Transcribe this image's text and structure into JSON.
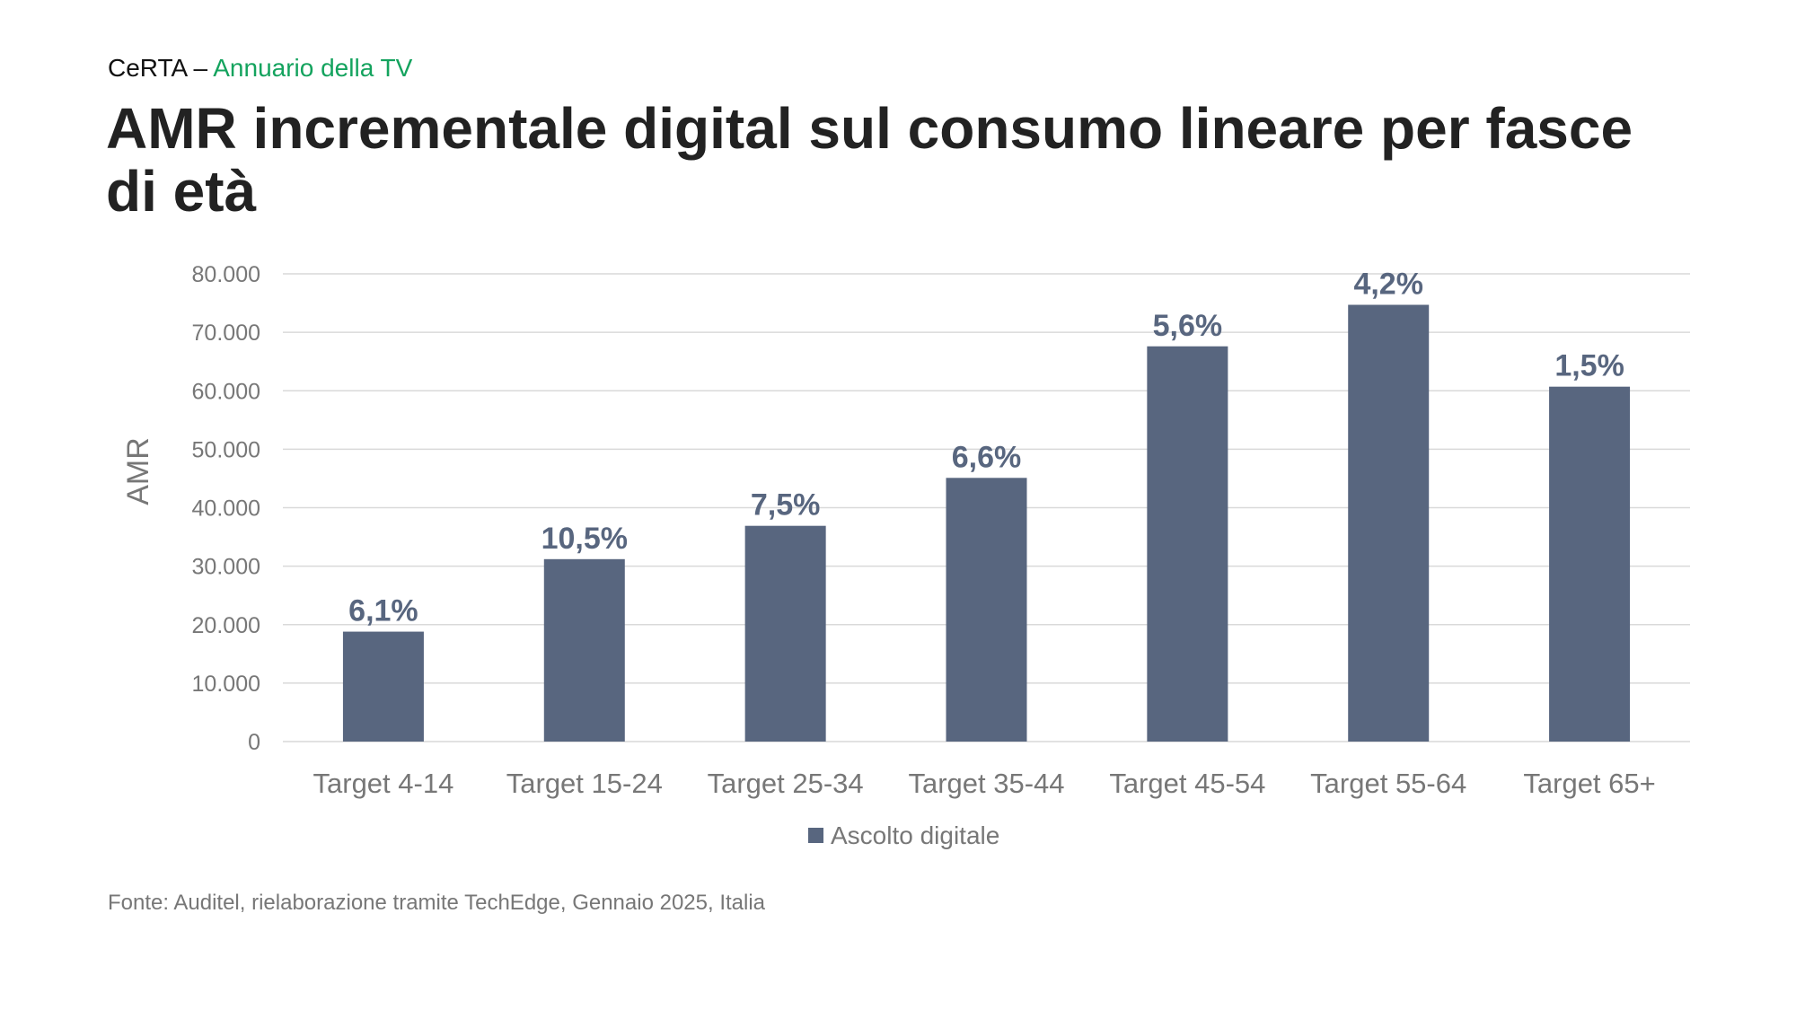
{
  "header": {
    "brand": "CeRTA –",
    "publication": "Annuario della TV",
    "title": "AMR incrementale digital sul consumo lineare per fasce di età"
  },
  "source": "Fonte: Auditel, rielaborazione tramite TechEdge, Gennaio 2025, Italia",
  "colors": {
    "bar": "#58667f",
    "accent": "#14a35e",
    "grid": "#d9d9d9",
    "tick": "#777777"
  },
  "chart_data": {
    "type": "bar",
    "title": "AMR incrementale digital sul consumo lineare per fasce di età",
    "xlabel": "",
    "ylabel": "AMR",
    "ylim": [
      0,
      80000
    ],
    "yticks": [
      0,
      10000,
      20000,
      30000,
      40000,
      50000,
      60000,
      70000,
      80000
    ],
    "ytick_labels": [
      "0",
      "10.000",
      "20.000",
      "30.000",
      "40.000",
      "50.000",
      "60.000",
      "70.000",
      "80.000"
    ],
    "grid": true,
    "legend_position": "bottom",
    "categories": [
      "Target 4-14",
      "Target 15-24",
      "Target 25-34",
      "Target 35-44",
      "Target 45-54",
      "Target 55-64",
      "Target 65+"
    ],
    "series": [
      {
        "name": "Ascolto digitale",
        "values": [
          18800,
          31200,
          36900,
          45100,
          67600,
          74700,
          60700
        ],
        "data_labels": [
          "6,1%",
          "10,5%",
          "7,5%",
          "6,6%",
          "5,6%",
          "4,2%",
          "1,5%"
        ]
      }
    ]
  }
}
